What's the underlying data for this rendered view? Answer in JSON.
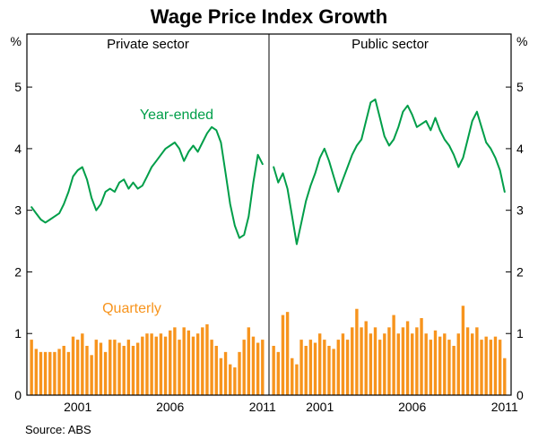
{
  "title": "Wage Price Index Growth",
  "source": "Source: ABS",
  "labels": {
    "year_ended": "Year-ended",
    "quarterly": "Quarterly"
  },
  "colors": {
    "line": "#009e49",
    "bar": "#f7941d",
    "axis": "#000000"
  },
  "axes": {
    "unit_left": "%",
    "unit_right": "%",
    "y_ticks": [
      0,
      1,
      2,
      3,
      4,
      5
    ],
    "ylim": [
      0,
      5.86
    ],
    "x_tick_labels": [
      "2001",
      "2006",
      "2011"
    ],
    "grid": false
  },
  "chart_data": [
    {
      "type": "bar",
      "panel": "Private sector",
      "x_start": 1998.5,
      "x_step": 0.25,
      "x_domain": [
        1998.25,
        2011.35
      ],
      "ylim": [
        0,
        5.86
      ],
      "series": [
        {
          "name": "Year-ended",
          "type": "line",
          "values": [
            3.05,
            2.95,
            2.85,
            2.8,
            2.85,
            2.9,
            2.95,
            3.1,
            3.3,
            3.55,
            3.65,
            3.7,
            3.5,
            3.2,
            3.0,
            3.1,
            3.3,
            3.35,
            3.3,
            3.45,
            3.5,
            3.35,
            3.45,
            3.35,
            3.4,
            3.55,
            3.7,
            3.8,
            3.9,
            4.0,
            4.05,
            4.1,
            4.0,
            3.8,
            3.95,
            4.05,
            3.95,
            4.1,
            4.25,
            4.35,
            4.3,
            4.1,
            3.6,
            3.1,
            2.75,
            2.55,
            2.6,
            2.9,
            3.45,
            3.9,
            3.75
          ]
        },
        {
          "name": "Quarterly",
          "type": "bar",
          "values": [
            0.9,
            0.75,
            0.7,
            0.7,
            0.7,
            0.7,
            0.75,
            0.8,
            0.7,
            0.95,
            0.9,
            1.0,
            0.8,
            0.65,
            0.9,
            0.85,
            0.7,
            0.9,
            0.9,
            0.85,
            0.8,
            0.9,
            0.8,
            0.85,
            0.95,
            1.0,
            1.0,
            0.95,
            1.0,
            0.95,
            1.05,
            1.1,
            0.9,
            1.1,
            1.05,
            0.95,
            1.0,
            1.1,
            1.15,
            0.9,
            0.8,
            0.6,
            0.7,
            0.5,
            0.45,
            0.7,
            0.9,
            1.1,
            0.95,
            0.85,
            0.9
          ]
        }
      ]
    },
    {
      "type": "bar",
      "panel": "Public sector",
      "x_start": 1998.5,
      "x_step": 0.25,
      "x_domain": [
        1998.25,
        2011.35
      ],
      "ylim": [
        0,
        5.86
      ],
      "series": [
        {
          "name": "Year-ended",
          "type": "line",
          "values": [
            3.7,
            3.45,
            3.6,
            3.35,
            2.9,
            2.45,
            2.8,
            3.15,
            3.4,
            3.6,
            3.85,
            4.0,
            3.8,
            3.55,
            3.3,
            3.5,
            3.7,
            3.9,
            4.05,
            4.15,
            4.45,
            4.75,
            4.8,
            4.5,
            4.2,
            4.05,
            4.15,
            4.35,
            4.6,
            4.7,
            4.55,
            4.35,
            4.4,
            4.45,
            4.3,
            4.5,
            4.3,
            4.15,
            4.05,
            3.9,
            3.7,
            3.85,
            4.15,
            4.45,
            4.6,
            4.35,
            4.1,
            4.0,
            3.85,
            3.65,
            3.3
          ]
        },
        {
          "name": "Quarterly",
          "type": "bar",
          "values": [
            0.8,
            0.7,
            1.3,
            1.35,
            0.6,
            0.5,
            0.9,
            0.8,
            0.9,
            0.85,
            1.0,
            0.9,
            0.8,
            0.75,
            0.9,
            1.0,
            0.9,
            1.1,
            1.4,
            1.1,
            1.2,
            1.0,
            1.1,
            0.9,
            1.0,
            1.1,
            1.3,
            1.0,
            1.1,
            1.2,
            1.0,
            1.1,
            1.25,
            1.0,
            0.9,
            1.05,
            0.95,
            1.0,
            0.9,
            0.8,
            1.0,
            1.45,
            1.1,
            1.0,
            1.1,
            0.9,
            0.95,
            0.9,
            0.95,
            0.9,
            0.6
          ]
        }
      ]
    }
  ]
}
